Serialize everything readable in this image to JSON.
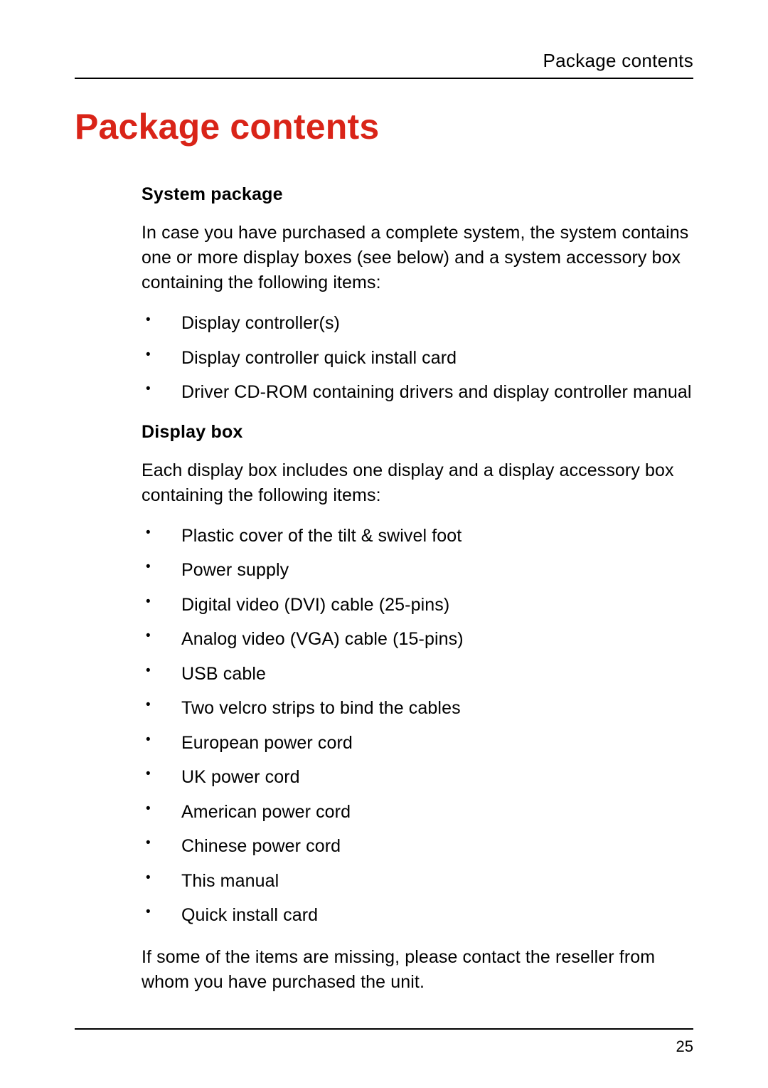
{
  "colors": {
    "title": "#d92418",
    "text": "#000000",
    "background": "#ffffff",
    "rule": "#000000"
  },
  "typography": {
    "header_label_fontsize": 26,
    "title_fontsize": 50,
    "heading_fontsize": 25,
    "body_fontsize": 25,
    "pagenum_fontsize": 22
  },
  "header": {
    "label": "Package contents"
  },
  "title": "Package contents",
  "sections": [
    {
      "heading": "System package",
      "intro": "In case you have purchased a complete system, the system contains one or more display boxes (see below) and a system accessory box containing the following items:",
      "items": [
        "Display controller(s)",
        "Display controller quick install card",
        "Driver CD-ROM containing drivers and display controller manual"
      ]
    },
    {
      "heading": "Display box",
      "intro": "Each display box includes one display and a display accessory box containing the following items:",
      "items": [
        "Plastic cover of the tilt & swivel foot",
        "Power supply",
        "Digital video (DVI)  cable (25-pins)",
        "Analog video (VGA) cable (15-pins)",
        "USB cable",
        "Two velcro strips to bind the cables",
        "European power cord",
        "UK power cord",
        "American power cord",
        "Chinese power cord",
        "This manual",
        "Quick install card"
      ],
      "closing": "If some of the items are missing, please contact the reseller from whom you have purchased the unit."
    }
  ],
  "page_number": "25"
}
